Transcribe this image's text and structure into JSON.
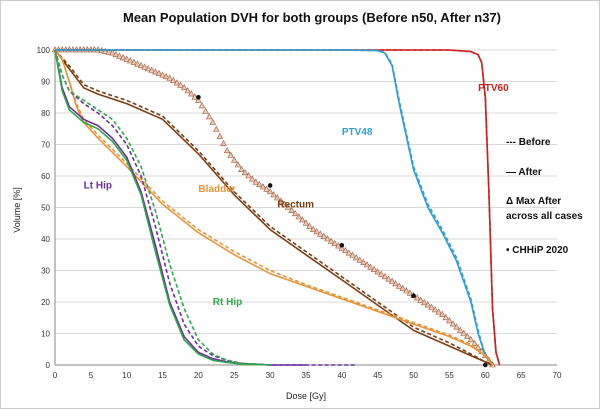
{
  "chart_data": {
    "type": "line",
    "title": "Mean Population DVH for both groups (Before n50, After n37)",
    "xlabel": "Dose [Gy]",
    "ylabel": "Volume [%]",
    "xlim": [
      0,
      70
    ],
    "ylim": [
      0,
      100
    ],
    "x_ticks": [
      0,
      5,
      10,
      15,
      20,
      25,
      30,
      35,
      40,
      45,
      50,
      55,
      60,
      65,
      70
    ],
    "y_ticks": [
      0,
      10,
      20,
      30,
      40,
      50,
      60,
      70,
      80,
      90,
      100
    ],
    "grid": "horizontal",
    "legend": {
      "position": "right",
      "entries": [
        "--- Before",
        "— After",
        "Δ Max After",
        "across all cases",
        "• CHHiP 2020"
      ]
    },
    "series": [
      {
        "name": "PTV60",
        "color": "#cc1f1f",
        "style": "solid",
        "label_at": [
          59,
          87
        ],
        "x": [
          0,
          10,
          20,
          40,
          55,
          58,
          59,
          59.5,
          60,
          60.5,
          61,
          61.5,
          62
        ],
        "y": [
          100,
          100,
          100,
          100,
          100,
          99.5,
          98.5,
          96,
          85,
          55,
          18,
          4,
          0
        ]
      },
      {
        "name": "PTV60",
        "color": "#cc1f1f",
        "style": "dashed",
        "x": [
          0,
          10,
          20,
          40,
          55,
          58,
          59,
          59.5,
          60,
          60.5,
          61,
          61.5,
          62
        ],
        "y": [
          100,
          100,
          100,
          100,
          100,
          99.5,
          98.5,
          96,
          85,
          55,
          18,
          4,
          0
        ]
      },
      {
        "name": "PTV48",
        "color": "#2e9fd0",
        "style": "solid",
        "label_at": [
          40,
          73
        ],
        "x": [
          0,
          10,
          20,
          30,
          40,
          45,
          46,
          47,
          48,
          50,
          52,
          54,
          56,
          58,
          59,
          60,
          61
        ],
        "y": [
          100,
          100,
          100,
          100,
          100,
          99.8,
          99,
          95,
          83,
          62,
          50,
          42,
          33,
          20,
          10,
          3,
          0
        ]
      },
      {
        "name": "PTV48",
        "color": "#2e9fd0",
        "style": "dashed",
        "x": [
          0,
          10,
          20,
          30,
          40,
          45,
          46,
          47,
          48,
          50,
          52,
          54,
          56,
          58,
          59,
          60,
          61
        ],
        "y": [
          100,
          100,
          100,
          100,
          100,
          99.8,
          99.2,
          95.5,
          84,
          63,
          51,
          43,
          34,
          21,
          11,
          3,
          0
        ]
      },
      {
        "name": "Rectum",
        "color": "#7a3e12",
        "style": "solid",
        "label_at": [
          31,
          50
        ],
        "x": [
          0,
          2,
          4,
          6,
          10,
          15,
          20,
          25,
          30,
          35,
          40,
          45,
          50,
          55,
          58,
          60,
          61
        ],
        "y": [
          100,
          94,
          88,
          86,
          83,
          78,
          67,
          54,
          43,
          35,
          27,
          19,
          11,
          6,
          3,
          1,
          0
        ]
      },
      {
        "name": "Rectum",
        "color": "#7a3e12",
        "style": "dashed",
        "x": [
          0,
          2,
          4,
          6,
          10,
          15,
          20,
          25,
          30,
          35,
          40,
          45,
          50,
          55,
          58,
          60,
          61
        ],
        "y": [
          100,
          95,
          89,
          87,
          84,
          79,
          68,
          55,
          44,
          36,
          28,
          20,
          12,
          7,
          3.5,
          1,
          0
        ]
      },
      {
        "name": "Bladder",
        "color": "#e8953a",
        "style": "solid",
        "label_at": [
          20,
          55
        ],
        "x": [
          0,
          1,
          2,
          3,
          4,
          6,
          10,
          15,
          20,
          25,
          30,
          35,
          40,
          45,
          50,
          55,
          58,
          60,
          61
        ],
        "y": [
          100,
          97,
          90,
          82,
          77,
          72,
          63,
          51,
          42,
          35,
          29,
          25,
          21,
          17,
          13,
          9,
          6,
          3,
          0
        ]
      },
      {
        "name": "Bladder",
        "color": "#e8953a",
        "style": "dashed",
        "x": [
          0,
          1,
          2,
          3,
          4,
          6,
          10,
          15,
          20,
          25,
          30,
          35,
          40,
          45,
          50,
          55,
          58,
          60,
          61
        ],
        "y": [
          100,
          97,
          90,
          83,
          78,
          73,
          64,
          52,
          43,
          36,
          30,
          25.5,
          21.5,
          17.5,
          13.5,
          9.5,
          6.5,
          3,
          0
        ]
      },
      {
        "name": "Lt Hip",
        "color": "#6a2fa0",
        "style": "solid",
        "label_at": [
          4,
          56
        ],
        "x": [
          0,
          1,
          2,
          4,
          6,
          8,
          10,
          12,
          14,
          16,
          18,
          20,
          22,
          24,
          26,
          30,
          35
        ],
        "y": [
          100,
          88,
          82,
          78,
          76,
          72,
          66,
          55,
          38,
          20,
          9,
          4,
          2,
          1,
          0.5,
          0,
          0
        ]
      },
      {
        "name": "Lt Hip",
        "color": "#6a2fa0",
        "style": "dashed",
        "x": [
          0,
          1,
          2,
          4,
          6,
          8,
          10,
          12,
          14,
          16,
          18,
          20,
          22,
          24,
          26,
          30,
          35,
          42
        ],
        "y": [
          100,
          92,
          87,
          83,
          80,
          76,
          70,
          60,
          44,
          26,
          13,
          6,
          3,
          1.5,
          0.5,
          0,
          0,
          0
        ]
      },
      {
        "name": "Rt Hip",
        "color": "#2ea84a",
        "style": "solid",
        "label_at": [
          22,
          19
        ],
        "x": [
          0,
          1,
          2,
          4,
          6,
          8,
          10,
          12,
          14,
          16,
          18,
          20,
          22,
          24,
          26,
          30
        ],
        "y": [
          100,
          87,
          81,
          77,
          75,
          71,
          65,
          54,
          36,
          19,
          8,
          3.5,
          1.5,
          0.8,
          0.3,
          0
        ]
      },
      {
        "name": "Rt Hip",
        "color": "#2ea84a",
        "style": "dashed",
        "x": [
          0,
          1,
          2,
          4,
          6,
          8,
          10,
          12,
          14,
          16,
          18,
          20,
          22,
          24,
          26,
          30
        ],
        "y": [
          100,
          92,
          87,
          84,
          81,
          78,
          72,
          63,
          49,
          32,
          18,
          8,
          3.5,
          1.5,
          0.5,
          0
        ]
      }
    ],
    "max_after": {
      "color": "#a05a3c",
      "x": [
        0,
        2,
        4,
        6,
        8,
        10,
        12,
        14,
        16,
        18,
        20,
        22,
        24,
        26,
        28,
        30,
        32,
        34,
        36,
        38,
        40,
        42,
        44,
        46,
        48,
        50,
        52,
        54,
        56,
        58,
        60,
        61
      ],
      "y": [
        100,
        100,
        100,
        100,
        99,
        97,
        95,
        93,
        91,
        88,
        84,
        77,
        68,
        62,
        58,
        55,
        51,
        47,
        43,
        40,
        37,
        34,
        31,
        28,
        25,
        22,
        19,
        16,
        12,
        8,
        3,
        0
      ]
    },
    "chhip_2020": {
      "x": [
        20,
        30,
        40,
        50,
        60
      ],
      "y": [
        85,
        57,
        38,
        22,
        0
      ]
    }
  }
}
